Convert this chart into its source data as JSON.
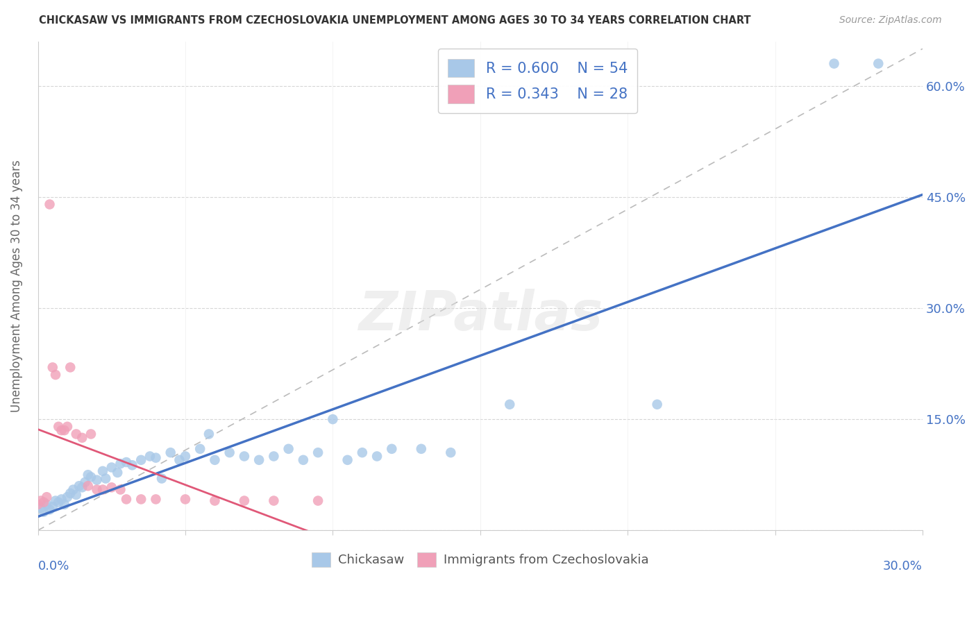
{
  "title": "CHICKASAW VS IMMIGRANTS FROM CZECHOSLOVAKIA UNEMPLOYMENT AMONG AGES 30 TO 34 YEARS CORRELATION CHART",
  "source": "Source: ZipAtlas.com",
  "ylabel": "Unemployment Among Ages 30 to 34 years",
  "xmin": 0.0,
  "xmax": 0.3,
  "ymin": 0.0,
  "ymax": 0.66,
  "chickasaw_color": "#a8c8e8",
  "czech_color": "#f0a0b8",
  "chickasaw_line_color": "#4472c4",
  "czech_line_color": "#e05878",
  "R_chickasaw": 0.6,
  "N_chickasaw": 54,
  "R_czech": 0.343,
  "N_czech": 28,
  "chickasaw_x": [
    0.001,
    0.002,
    0.003,
    0.004,
    0.005,
    0.006,
    0.007,
    0.008,
    0.009,
    0.01,
    0.011,
    0.012,
    0.013,
    0.014,
    0.015,
    0.016,
    0.017,
    0.018,
    0.02,
    0.022,
    0.023,
    0.025,
    0.027,
    0.028,
    0.03,
    0.032,
    0.035,
    0.038,
    0.04,
    0.042,
    0.045,
    0.048,
    0.05,
    0.055,
    0.058,
    0.06,
    0.065,
    0.07,
    0.075,
    0.08,
    0.085,
    0.09,
    0.095,
    0.1,
    0.105,
    0.11,
    0.115,
    0.12,
    0.13,
    0.14,
    0.16,
    0.21,
    0.27,
    0.285
  ],
  "chickasaw_y": [
    0.03,
    0.025,
    0.035,
    0.028,
    0.032,
    0.04,
    0.038,
    0.042,
    0.035,
    0.045,
    0.05,
    0.055,
    0.048,
    0.06,
    0.058,
    0.065,
    0.075,
    0.072,
    0.068,
    0.08,
    0.07,
    0.085,
    0.078,
    0.09,
    0.092,
    0.088,
    0.095,
    0.1,
    0.098,
    0.07,
    0.105,
    0.095,
    0.1,
    0.11,
    0.13,
    0.095,
    0.105,
    0.1,
    0.095,
    0.1,
    0.11,
    0.095,
    0.105,
    0.15,
    0.095,
    0.105,
    0.1,
    0.11,
    0.11,
    0.105,
    0.17,
    0.17,
    0.63,
    0.63
  ],
  "czech_x": [
    0.0,
    0.001,
    0.002,
    0.003,
    0.004,
    0.005,
    0.006,
    0.007,
    0.008,
    0.009,
    0.01,
    0.011,
    0.013,
    0.015,
    0.017,
    0.018,
    0.02,
    0.022,
    0.025,
    0.028,
    0.03,
    0.035,
    0.04,
    0.05,
    0.06,
    0.07,
    0.08,
    0.095
  ],
  "czech_y": [
    0.035,
    0.04,
    0.038,
    0.045,
    0.44,
    0.22,
    0.21,
    0.14,
    0.135,
    0.135,
    0.14,
    0.22,
    0.13,
    0.125,
    0.06,
    0.13,
    0.055,
    0.055,
    0.058,
    0.055,
    0.042,
    0.042,
    0.042,
    0.042,
    0.04,
    0.04,
    0.04,
    0.04
  ],
  "ref_line_x": [
    0.0,
    0.3
  ],
  "ref_line_y": [
    0.0,
    0.65
  ],
  "watermark": "ZIPatlas",
  "grid_color": "#cccccc",
  "background_color": "#ffffff",
  "ytick_vals": [
    0.0,
    0.15,
    0.3,
    0.45,
    0.6
  ],
  "xtick_vals": [
    0.0,
    0.05,
    0.1,
    0.15,
    0.2,
    0.25,
    0.3
  ]
}
